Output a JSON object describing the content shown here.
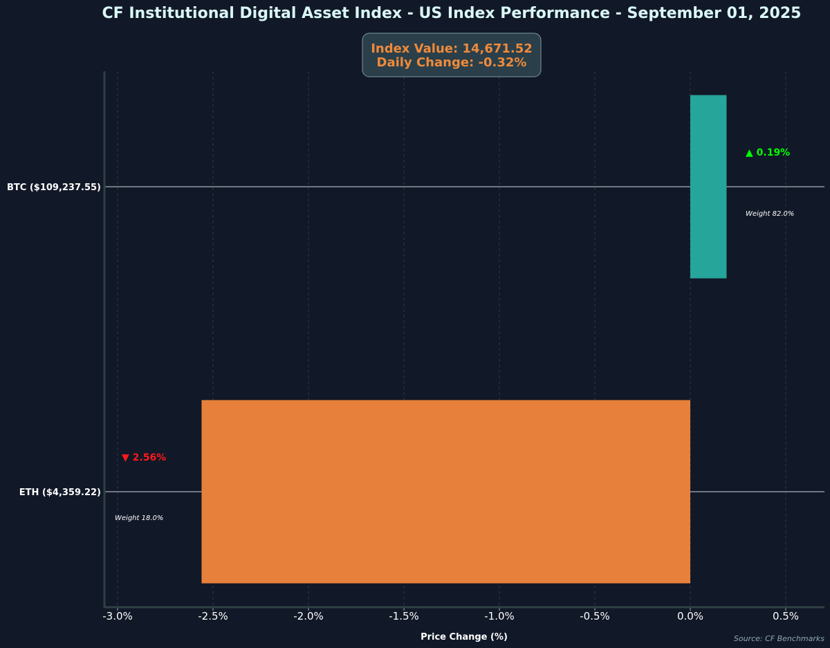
{
  "chart_data": {
    "type": "bar",
    "orientation": "horizontal",
    "title": "CF Institutional Digital Asset Index - US Index Performance - September 01, 2025",
    "summary": {
      "index_value_label": "Index Value: 14,671.52",
      "daily_change_label": "Daily Change: -0.32%"
    },
    "xlabel": "Price Change (%)",
    "xlim": [
      -3.07,
      0.7
    ],
    "xticks": [
      -3.0,
      -2.5,
      -2.0,
      -1.5,
      -1.0,
      -0.5,
      0.0,
      0.5
    ],
    "xtick_labels": [
      "-3.0%",
      "-2.5%",
      "-2.0%",
      "-1.5%",
      "-1.0%",
      "-0.5%",
      "0.0%",
      "0.5%"
    ],
    "grid": "vertical dashed",
    "categories": [
      "BTC ($109,237.55)",
      "ETH ($4,359.22)"
    ],
    "values": [
      0.19,
      -2.56
    ],
    "change_labels": [
      "▲ 0.19%",
      "▼ 2.56%"
    ],
    "weight_labels": [
      "Weight 82.0%",
      "Weight 18.0%"
    ],
    "weights": [
      82.0,
      18.0
    ],
    "colors": {
      "background": "#111827",
      "positive_bar": "#26a69a",
      "negative_bar": "#e6803b",
      "positive_text": "#00ff00",
      "negative_text": "#ff1a1a",
      "title": "#d9f7f7",
      "summary_text": "#f08a3a",
      "summary_box": "#2a3f4a",
      "axis": "#2f3f44"
    },
    "source": "Source: CF Benchmarks"
  }
}
